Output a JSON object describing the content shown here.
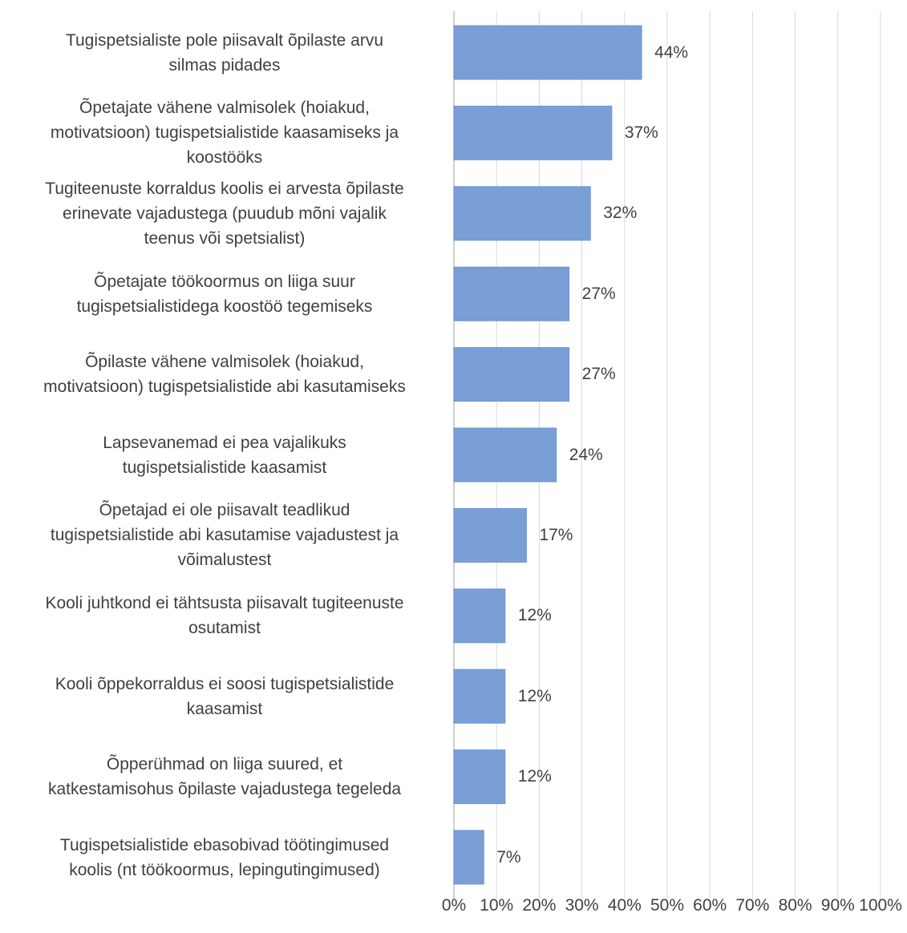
{
  "colors": {
    "bar": "#7a9fd6",
    "bar_edge": "#6f95cf",
    "gridline": "#d9d9d9",
    "axis_line": "#bfbfbf",
    "text": "#404040"
  },
  "chart_data": {
    "type": "bar",
    "orientation": "horizontal",
    "title": "",
    "xlabel": "",
    "ylabel": "",
    "xlim": [
      0,
      1
    ],
    "grid": true,
    "legend": "none",
    "categories": [
      [
        "Tugispetsialiste pole piisavalt õpilaste arvu",
        "silmas pidades"
      ],
      [
        "Õpetajate vähene valmisolek (hoiakud,",
        "motivatsioon) tugispetsialistide kaasamiseks ja",
        "koostööks"
      ],
      [
        "Tugiteenuste korraldus koolis ei arvesta õpilaste",
        "erinevate vajadustega (puudub mõni vajalik",
        "teenus või spetsialist)"
      ],
      [
        "Õpetajate töökoormus on liiga suur",
        "tugispetsialistidega koostöö tegemiseks"
      ],
      [
        "Õpilaste vähene valmisolek (hoiakud,",
        "motivatsioon) tugispetsialistide abi kasutamiseks"
      ],
      [
        "Lapsevanemad ei pea vajalikuks",
        "tugispetsialistide kaasamist"
      ],
      [
        "Õpetajad ei ole piisavalt teadlikud",
        "tugispetsialistide abi kasutamise vajadustest ja",
        "võimalustest"
      ],
      [
        "Kooli juhtkond ei tähtsusta piisavalt tugiteenuste",
        "osutamist"
      ],
      [
        "Kooli õppekorraldus ei soosi tugispetsialistide",
        "kaasamist"
      ],
      [
        "Õpperühmad on liiga suured, et",
        "katkestamisohus õpilaste vajadustega tegeleda"
      ],
      [
        "Tugispetsialistide ebasobivad töötingimused",
        "koolis (nt töökoormus, lepingutingimused)"
      ]
    ],
    "values": [
      0.44,
      0.37,
      0.32,
      0.27,
      0.27,
      0.24,
      0.17,
      0.12,
      0.12,
      0.12,
      0.07
    ],
    "value_labels": [
      "44%",
      "37%",
      "32%",
      "27%",
      "27%",
      "24%",
      "17%",
      "12%",
      "12%",
      "12%",
      "7%"
    ],
    "x_ticks": [
      0,
      0.1,
      0.2,
      0.3,
      0.4,
      0.5,
      0.6,
      0.7,
      0.8,
      0.9,
      1.0
    ],
    "x_tick_labels": [
      "0%",
      "10%",
      "20%",
      "30%",
      "40%",
      "50%",
      "60%",
      "70%",
      "80%",
      "90%",
      "100%"
    ]
  }
}
